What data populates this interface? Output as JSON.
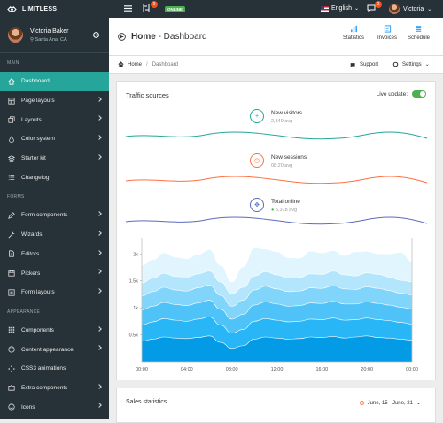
{
  "app": {
    "brand": "LIMITLESS"
  },
  "topbar": {
    "notif_count_1": "9",
    "online_label": "ONLINE",
    "language": "English",
    "notif_count_2": "2",
    "user_name": "Victoria"
  },
  "sidebar": {
    "user": {
      "name": "Victoria Baker",
      "location": "Santa Ana, CA"
    },
    "sections": [
      {
        "label": "MAIN",
        "items": [
          {
            "label": "Dashboard",
            "icon": "home-icon",
            "active": true,
            "chevron": false
          },
          {
            "label": "Page layouts",
            "icon": "layout-icon",
            "chevron": true
          },
          {
            "label": "Layouts",
            "icon": "copy-icon",
            "chevron": true
          },
          {
            "label": "Color system",
            "icon": "droplet-icon",
            "chevron": true
          },
          {
            "label": "Starter kit",
            "icon": "stack-icon",
            "chevron": true
          },
          {
            "label": "Changelog",
            "icon": "list-icon",
            "chevron": false
          }
        ]
      },
      {
        "label": "FORMS",
        "items": [
          {
            "label": "Form components",
            "icon": "pencil-icon",
            "chevron": true
          },
          {
            "label": "Wizards",
            "icon": "wand-icon",
            "chevron": true
          },
          {
            "label": "Editors",
            "icon": "file-text-icon",
            "chevron": true
          },
          {
            "label": "Pickers",
            "icon": "calendar-icon",
            "chevron": true
          },
          {
            "label": "Form layouts",
            "icon": "form-icon",
            "chevron": true
          }
        ]
      },
      {
        "label": "APPEARANCE",
        "items": [
          {
            "label": "Components",
            "icon": "grid-icon",
            "chevron": true
          },
          {
            "label": "Content appearance",
            "icon": "palette-icon",
            "chevron": true
          },
          {
            "label": "CSS3 animations",
            "icon": "spinner-icon",
            "chevron": false
          },
          {
            "label": "Extra components",
            "icon": "puzzle-icon",
            "chevron": true
          },
          {
            "label": "Icons",
            "icon": "icons-icon",
            "chevron": true
          }
        ]
      }
    ]
  },
  "page_header": {
    "title_bold": "Home",
    "title_rest": " - Dashboard",
    "buttons": [
      "Statistics",
      "Invoices",
      "Schedule"
    ]
  },
  "breadcrumb": {
    "home": "Home",
    "current": "Dashboard",
    "support": "Support",
    "settings": "Settings"
  },
  "traffic": {
    "title": "Traffic sources",
    "live_update": "Live update:",
    "live_on": true,
    "metrics": [
      {
        "title": "New visitors",
        "sub": "2,349 avg",
        "icon": "plus-icon",
        "color": "#26a69a"
      },
      {
        "title": "New sessions",
        "sub": "08:20 avg",
        "icon": "watch-icon",
        "color": "#ff7043"
      },
      {
        "title": "Total online",
        "sub": "5,378 avg",
        "icon": "people-icon",
        "color": "#5c6bc0"
      }
    ]
  },
  "chart_data": {
    "type": "area",
    "y_ticks": [
      "0.5k",
      "1k",
      "1.5k",
      "2k"
    ],
    "x_ticks": [
      "00:00",
      "04:00",
      "08:00",
      "12:00",
      "16:00",
      "20:00",
      "00:00"
    ],
    "ylim": [
      0,
      2300
    ],
    "x_hours": [
      0,
      1,
      2,
      3,
      4,
      5,
      6,
      7,
      8,
      9,
      10,
      11,
      12,
      13,
      14,
      15,
      16,
      17,
      18,
      19,
      20,
      21,
      22,
      23,
      24
    ],
    "series": [
      {
        "values": [
          380,
          420,
          460,
          440,
          430,
          450,
          480,
          360,
          250,
          300,
          420,
          460,
          440,
          420,
          430,
          460,
          450,
          470,
          440,
          460,
          480,
          450,
          440,
          420,
          400
        ]
      },
      {
        "values": [
          300,
          320,
          340,
          330,
          320,
          340,
          350,
          320,
          280,
          300,
          330,
          340,
          330,
          320,
          320,
          330,
          330,
          340,
          330,
          320,
          330,
          330,
          320,
          310,
          300
        ]
      },
      {
        "values": [
          280,
          290,
          300,
          290,
          290,
          300,
          310,
          290,
          260,
          280,
          300,
          310,
          300,
          290,
          290,
          300,
          300,
          310,
          300,
          290,
          300,
          300,
          290,
          280,
          280
        ]
      },
      {
        "values": [
          260,
          270,
          280,
          270,
          270,
          280,
          280,
          260,
          240,
          260,
          280,
          290,
          280,
          270,
          270,
          280,
          280,
          290,
          280,
          270,
          280,
          280,
          270,
          260,
          260
        ]
      },
      {
        "values": [
          240,
          250,
          260,
          250,
          260,
          260,
          260,
          250,
          230,
          240,
          260,
          270,
          260,
          250,
          250,
          260,
          260,
          270,
          260,
          250,
          260,
          260,
          250,
          240,
          240
        ]
      },
      {
        "values": [
          330,
          340,
          380,
          360,
          340,
          360,
          400,
          310,
          220,
          380,
          520,
          420,
          430,
          380,
          360,
          420,
          400,
          380,
          360,
          450,
          400,
          380,
          430,
          520,
          380
        ]
      }
    ],
    "colors": [
      "#039be5",
      "#29b6f6",
      "#4fc3f7",
      "#81d4fa",
      "#b3e5fc",
      "#e1f5fe"
    ]
  },
  "sales": {
    "title": "Sales statistics",
    "range": "June, 15 - June, 21"
  }
}
